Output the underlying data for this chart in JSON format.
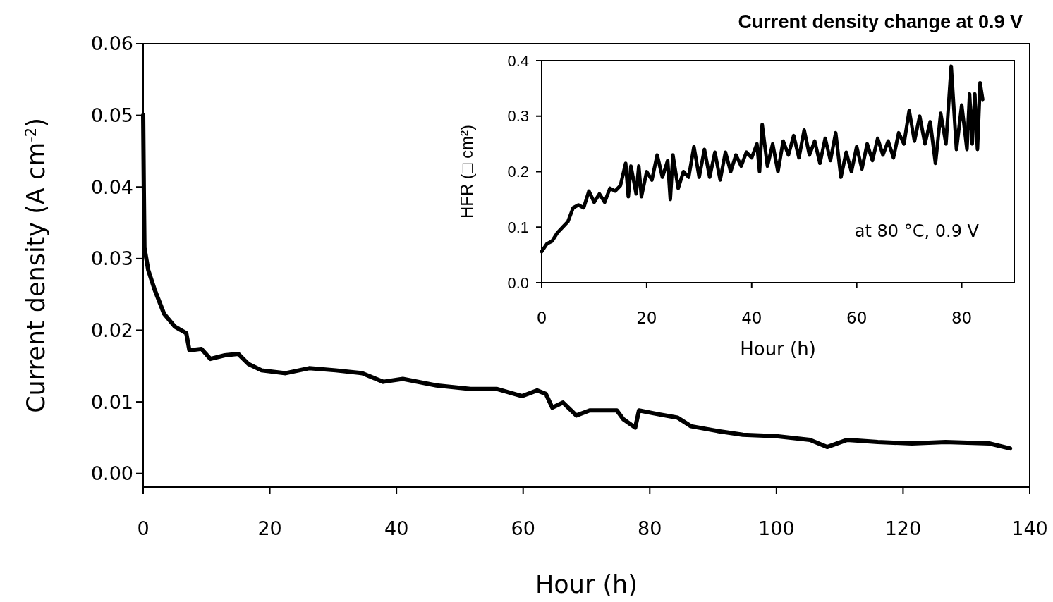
{
  "chart_data": [
    {
      "type": "line",
      "title": "Current density change at 0.9 V",
      "xlabel": "Hour (h)",
      "ylabel": "Current density (A cm$^{-2}$)",
      "xlim": [
        0,
        140
      ],
      "ylim": [
        -0.0019,
        0.06
      ],
      "xticks": [
        0,
        20,
        40,
        60,
        80,
        100,
        120,
        140
      ],
      "yticks": [
        {
          "value": 0,
          "label": "0.00"
        },
        0.01,
        0.02,
        0.03,
        0.04,
        0.05,
        0.06
      ],
      "grid": false,
      "marker": "none",
      "line_style": "solid",
      "series": [
        {
          "color": "#000000",
          "x": [
            0,
            0.1,
            0.2,
            0.8,
            1.8,
            3.3,
            5,
            6.8,
            7.3,
            9.2,
            10.6,
            12.9,
            15,
            16.6,
            18.7,
            22.5,
            26.2,
            30.4,
            34.6,
            37.9,
            41,
            46.3,
            51.7,
            55.9,
            59.8,
            62.2,
            63.6,
            64.6,
            66.3,
            68.4,
            70.5,
            74.8,
            75.8,
            77.7,
            78.3,
            81.2,
            84.4,
            86.5,
            90.9,
            94.7,
            100,
            105.3,
            108,
            111.2,
            116,
            121.4,
            126.7,
            133.6,
            136.9
          ],
          "values": [
            0.05,
            0.04,
            0.0315,
            0.0284,
            0.0257,
            0.0223,
            0.0205,
            0.0196,
            0.0172,
            0.0174,
            0.016,
            0.0165,
            0.0167,
            0.0153,
            0.0144,
            0.014,
            0.0147,
            0.0144,
            0.014,
            0.0128,
            0.0132,
            0.0123,
            0.0118,
            0.0118,
            0.0108,
            0.0116,
            0.0111,
            0.0092,
            0.0099,
            0.0081,
            0.0088,
            0.0088,
            0.0076,
            0.0064,
            0.0088,
            0.0083,
            0.0078,
            0.0066,
            0.0059,
            0.0054,
            0.0052,
            0.0047,
            0.0037,
            0.0047,
            0.0044,
            0.0042,
            0.0044,
            0.0042,
            0.0035
          ]
        }
      ]
    },
    {
      "type": "line",
      "xlabel": "Hour (h)",
      "ylabel": "HFR (□ cm²)",
      "annotations": [
        "at 80 °C, 0.9 V"
      ],
      "xlim": [
        0,
        90
      ],
      "ylim": [
        0,
        0.4
      ],
      "xticks": [
        0,
        20,
        40,
        60,
        80
      ],
      "yticks": [
        {
          "value": 0,
          "label": "0.0"
        },
        0.1,
        0.2,
        0.3,
        0.4
      ],
      "grid": false,
      "marker": "none",
      "line_style": "solid",
      "series": [
        {
          "color": "#000000",
          "x": [
            0,
            1,
            2,
            3,
            4,
            5,
            6,
            7,
            8,
            9,
            10,
            11,
            12,
            13,
            14,
            15,
            16,
            16.5,
            17,
            18,
            18.5,
            19,
            20,
            21,
            22,
            23,
            24,
            24.5,
            25,
            26,
            27,
            28,
            29,
            30,
            31,
            32,
            33,
            34,
            35,
            36,
            37,
            38,
            39,
            40,
            41,
            41.5,
            42,
            43,
            44,
            45,
            46,
            47,
            48,
            49,
            50,
            51,
            52,
            53,
            54,
            55,
            56,
            57,
            58,
            59,
            60,
            61,
            62,
            63,
            64,
            65,
            66,
            67,
            68,
            69,
            70,
            71,
            72,
            73,
            74,
            75,
            76,
            77,
            78,
            79,
            80,
            81,
            81.5,
            82,
            82.5,
            83,
            83.5,
            84
          ],
          "values": [
            0.056,
            0.07,
            0.075,
            0.09,
            0.1,
            0.11,
            0.135,
            0.14,
            0.135,
            0.165,
            0.145,
            0.16,
            0.145,
            0.17,
            0.165,
            0.175,
            0.215,
            0.155,
            0.21,
            0.16,
            0.21,
            0.155,
            0.2,
            0.185,
            0.23,
            0.19,
            0.22,
            0.15,
            0.23,
            0.17,
            0.2,
            0.19,
            0.245,
            0.19,
            0.24,
            0.19,
            0.235,
            0.185,
            0.235,
            0.2,
            0.23,
            0.21,
            0.235,
            0.225,
            0.25,
            0.2,
            0.285,
            0.21,
            0.25,
            0.2,
            0.255,
            0.23,
            0.265,
            0.225,
            0.275,
            0.23,
            0.255,
            0.215,
            0.26,
            0.22,
            0.27,
            0.19,
            0.235,
            0.2,
            0.245,
            0.205,
            0.25,
            0.22,
            0.26,
            0.23,
            0.255,
            0.225,
            0.27,
            0.25,
            0.31,
            0.255,
            0.3,
            0.25,
            0.29,
            0.215,
            0.305,
            0.25,
            0.39,
            0.24,
            0.32,
            0.24,
            0.34,
            0.25,
            0.34,
            0.24,
            0.36,
            0.33
          ]
        }
      ]
    }
  ]
}
